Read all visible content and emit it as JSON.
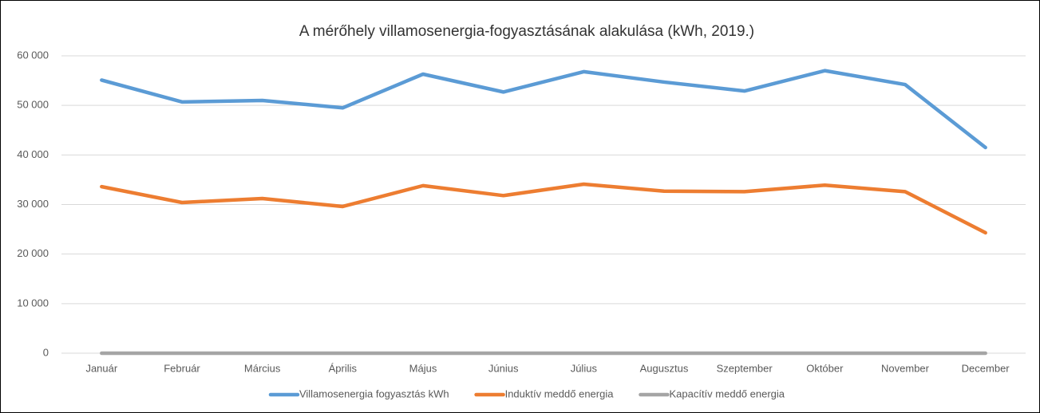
{
  "chart_data": {
    "type": "line",
    "title": "A mérőhely villamosenergia-fogyasztásának alakulása (kWh, 2019.)",
    "categories": [
      "Január",
      "Február",
      "Március",
      "Április",
      "Május",
      "Június",
      "Július",
      "Augusztus",
      "Szeptember",
      "Október",
      "November",
      "December"
    ],
    "series": [
      {
        "name": "Villamosenergia fogyasztás kWh",
        "color": "#5b9bd5",
        "values": [
          55100,
          50700,
          51000,
          49500,
          56300,
          52700,
          56800,
          54700,
          52900,
          57000,
          54200,
          41500
        ]
      },
      {
        "name": "Induktív meddő energia",
        "color": "#ed7d31",
        "values": [
          33600,
          30400,
          31200,
          29600,
          33800,
          31800,
          34100,
          32700,
          32600,
          33900,
          32600,
          24300
        ]
      },
      {
        "name": "Kapacítív meddő energia",
        "color": "#a5a5a5",
        "values": [
          0,
          0,
          0,
          0,
          0,
          0,
          0,
          0,
          0,
          0,
          0,
          0
        ]
      }
    ],
    "ylim": [
      0,
      60000
    ],
    "yticks": [
      {
        "value": 0,
        "label": "0"
      },
      {
        "value": 10000,
        "label": "10 000"
      },
      {
        "value": 20000,
        "label": "20 000"
      },
      {
        "value": 30000,
        "label": "30 000"
      },
      {
        "value": 40000,
        "label": "40 000"
      },
      {
        "value": 50000,
        "label": "50 000"
      },
      {
        "value": 60000,
        "label": "60 000"
      }
    ],
    "grid": true,
    "legend": "bottom"
  }
}
